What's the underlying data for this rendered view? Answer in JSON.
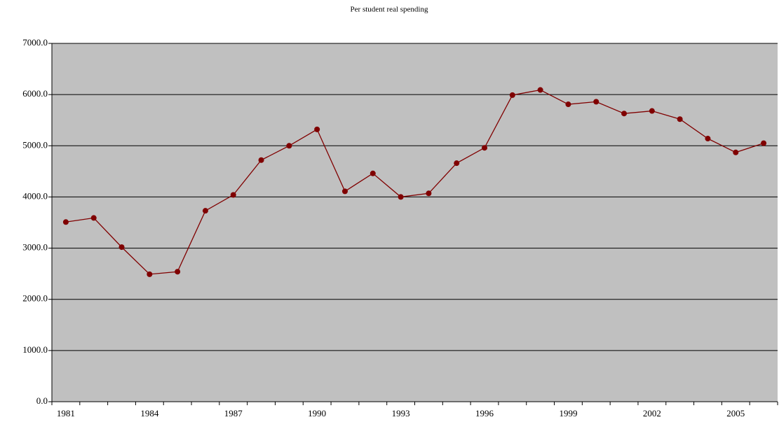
{
  "chart_data": {
    "type": "line",
    "title": "Per student real spending",
    "categories": [
      "1981",
      null,
      null,
      "1984",
      null,
      null,
      "1987",
      null,
      null,
      "1990",
      null,
      null,
      "1993",
      null,
      null,
      "1996",
      null,
      null,
      "1999",
      null,
      null,
      "2002",
      null,
      null,
      "2005",
      null
    ],
    "series": [
      {
        "color": "#800000",
        "values": [
          3510,
          3590,
          3020,
          2490,
          2540,
          3730,
          4040,
          4720,
          5000,
          5320,
          4110,
          4460,
          4000,
          4070,
          4660,
          4960,
          5990,
          6090,
          5810,
          5860,
          5630,
          5680,
          5520,
          5140,
          4870,
          5050
        ]
      }
    ],
    "ylim": [
      0,
      7000
    ],
    "yticks": [
      {
        "value": 0,
        "label": "0.0"
      },
      {
        "value": 1000,
        "label": "1000.0"
      },
      {
        "value": 2000,
        "label": "2000.0"
      },
      {
        "value": 3000,
        "label": "3000.0"
      },
      {
        "value": 4000,
        "label": "4000.0"
      },
      {
        "value": 5000,
        "label": "5000.0"
      },
      {
        "value": 6000,
        "label": "6000.0"
      },
      {
        "value": 7000,
        "label": "7000.0"
      }
    ],
    "grid": true,
    "plot_background": "#c0c0c0"
  }
}
